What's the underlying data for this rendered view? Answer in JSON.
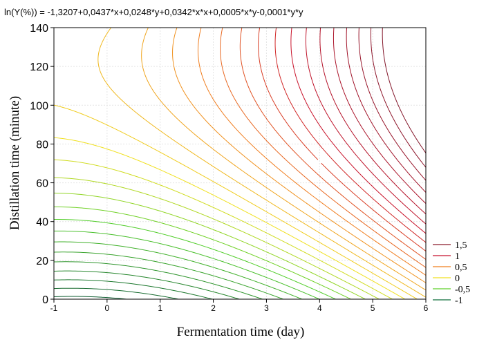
{
  "chart_data": {
    "type": "contour",
    "title": "ln(Y(%)) = -1,3207+0,0437*x+0,0248*y+0,0342*x*x+0,0005*x*y-0,0001*y*y",
    "xlabel": "Fermentation time (day)",
    "ylabel": "Distillation time (minute)",
    "xlim": [
      -1,
      6
    ],
    "ylim": [
      0,
      140
    ],
    "x_ticks": [
      "-1",
      "0",
      "1",
      "2",
      "3",
      "4",
      "5",
      "6"
    ],
    "y_ticks": [
      "0",
      "20",
      "40",
      "60",
      "80",
      "100",
      "120",
      "140"
    ],
    "grid": true,
    "formula": {
      "intercept": -1.3207,
      "x": 0.0437,
      "y": 0.0248,
      "xx": 0.0342,
      "xy": 0.0005,
      "yy": -0.0001
    },
    "contour_levels": {
      "min": -1.3,
      "max": 1.7,
      "step": 0.1
    },
    "legend": {
      "position": "bottom-right",
      "entries": [
        {
          "label": "1,5",
          "color": "#8b1a2a"
        },
        {
          "label": "1",
          "color": "#c8102e"
        },
        {
          "label": "0,5",
          "color": "#f07f1d"
        },
        {
          "label": "0",
          "color": "#f0e020"
        },
        {
          "label": "-0,5",
          "color": "#5fd02a"
        },
        {
          "label": "-1",
          "color": "#0f6e3a"
        }
      ]
    }
  }
}
